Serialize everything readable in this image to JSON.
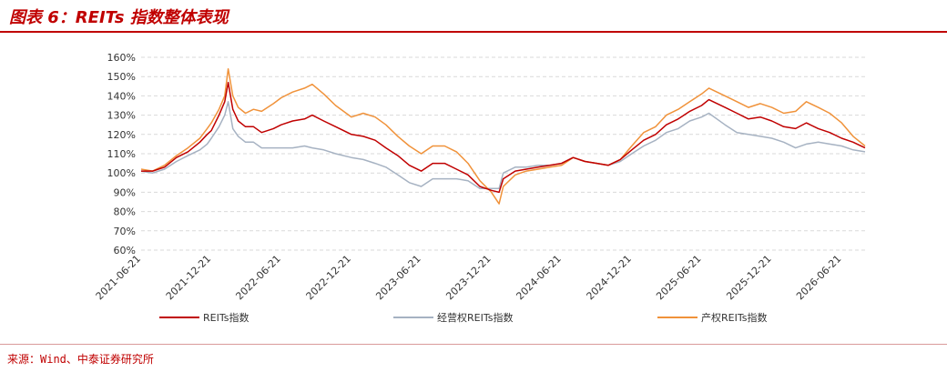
{
  "header": {
    "title": "图表 6：REITs 指数整体表现"
  },
  "footer": {
    "source": "来源：Wind、中泰证券研究所"
  },
  "colors": {
    "reits": "#c00000",
    "operating": "#a6b2c2",
    "property": "#f0923a",
    "grid": "#d9d9d9",
    "accent": "#c00000"
  },
  "chart_data": {
    "type": "line",
    "title": "",
    "xlabel": "",
    "ylabel": "",
    "ylim": [
      60,
      160
    ],
    "y_ticks": [
      60,
      70,
      80,
      90,
      100,
      110,
      120,
      130,
      140,
      150,
      160
    ],
    "y_tick_labels": [
      "60%",
      "70%",
      "80%",
      "90%",
      "100%",
      "110%",
      "120%",
      "130%",
      "140%",
      "150%",
      "160%"
    ],
    "x_range": [
      "2021-06-21",
      "2026-08-21"
    ],
    "x_ticks": [
      "2021-06-21",
      "2021-12-21",
      "2022-06-21",
      "2022-12-21",
      "2023-06-21",
      "2023-12-21",
      "2024-06-21",
      "2024-12-21",
      "2025-06-21",
      "2025-12-21",
      "2026-06-21"
    ],
    "grid": true,
    "legend_position": "bottom",
    "series": [
      {
        "name": "REITs指数",
        "color": "#c00000",
        "points": [
          [
            "2021-06-21",
            101
          ],
          [
            "2021-07-21",
            101
          ],
          [
            "2021-08-21",
            103
          ],
          [
            "2021-09-21",
            108
          ],
          [
            "2021-10-21",
            111
          ],
          [
            "2021-11-21",
            116
          ],
          [
            "2021-12-10",
            120
          ],
          [
            "2021-12-21",
            122
          ],
          [
            "2022-01-10",
            130
          ],
          [
            "2022-01-25",
            137
          ],
          [
            "2022-02-03",
            147
          ],
          [
            "2022-02-15",
            133
          ],
          [
            "2022-03-01",
            127
          ],
          [
            "2022-03-20",
            124
          ],
          [
            "2022-04-10",
            124
          ],
          [
            "2022-05-01",
            121
          ],
          [
            "2022-06-01",
            123
          ],
          [
            "2022-06-21",
            125
          ],
          [
            "2022-07-21",
            127
          ],
          [
            "2022-08-21",
            128
          ],
          [
            "2022-09-10",
            130
          ],
          [
            "2022-10-10",
            127
          ],
          [
            "2022-11-10",
            124
          ],
          [
            "2022-12-21",
            120
          ],
          [
            "2023-01-21",
            119
          ],
          [
            "2023-02-21",
            117
          ],
          [
            "2023-03-21",
            113
          ],
          [
            "2023-04-21",
            109
          ],
          [
            "2023-05-21",
            104
          ],
          [
            "2023-06-21",
            101
          ],
          [
            "2023-07-21",
            105
          ],
          [
            "2023-08-21",
            105
          ],
          [
            "2023-09-21",
            102
          ],
          [
            "2023-10-21",
            99
          ],
          [
            "2023-11-21",
            93
          ],
          [
            "2023-12-21",
            91
          ],
          [
            "2024-01-10",
            90
          ],
          [
            "2024-01-21",
            97
          ],
          [
            "2024-02-21",
            101
          ],
          [
            "2024-03-21",
            102
          ],
          [
            "2024-04-21",
            103
          ],
          [
            "2024-05-21",
            104
          ],
          [
            "2024-06-21",
            105
          ],
          [
            "2024-07-21",
            108
          ],
          [
            "2024-08-21",
            106
          ],
          [
            "2024-09-21",
            105
          ],
          [
            "2024-10-21",
            104
          ],
          [
            "2024-11-21",
            107
          ],
          [
            "2024-12-21",
            112
          ],
          [
            "2025-01-21",
            117
          ],
          [
            "2025-02-21",
            120
          ],
          [
            "2025-03-21",
            125
          ],
          [
            "2025-04-21",
            128
          ],
          [
            "2025-05-21",
            132
          ],
          [
            "2025-06-21",
            135
          ],
          [
            "2025-07-10",
            138
          ],
          [
            "2025-08-21",
            134
          ],
          [
            "2025-09-21",
            131
          ],
          [
            "2025-10-21",
            128
          ],
          [
            "2025-11-21",
            129
          ],
          [
            "2025-12-21",
            127
          ],
          [
            "2026-01-21",
            124
          ],
          [
            "2026-02-21",
            123
          ],
          [
            "2026-03-21",
            126
          ],
          [
            "2026-04-21",
            123
          ],
          [
            "2026-05-21",
            121
          ],
          [
            "2026-06-21",
            118
          ],
          [
            "2026-07-21",
            116
          ],
          [
            "2026-08-21",
            113
          ]
        ]
      },
      {
        "name": "经营权REITs指数",
        "color": "#a6b2c2",
        "points": [
          [
            "2021-06-21",
            101
          ],
          [
            "2021-07-21",
            100
          ],
          [
            "2021-08-21",
            102
          ],
          [
            "2021-09-21",
            106
          ],
          [
            "2021-10-21",
            109
          ],
          [
            "2021-11-21",
            112
          ],
          [
            "2021-12-10",
            115
          ],
          [
            "2021-12-21",
            118
          ],
          [
            "2022-01-10",
            124
          ],
          [
            "2022-01-25",
            130
          ],
          [
            "2022-02-03",
            137
          ],
          [
            "2022-02-15",
            123
          ],
          [
            "2022-03-01",
            119
          ],
          [
            "2022-03-20",
            116
          ],
          [
            "2022-04-10",
            116
          ],
          [
            "2022-05-01",
            113
          ],
          [
            "2022-06-01",
            113
          ],
          [
            "2022-06-21",
            113
          ],
          [
            "2022-07-21",
            113
          ],
          [
            "2022-08-21",
            114
          ],
          [
            "2022-09-10",
            113
          ],
          [
            "2022-10-10",
            112
          ],
          [
            "2022-11-10",
            110
          ],
          [
            "2022-12-21",
            108
          ],
          [
            "2023-01-21",
            107
          ],
          [
            "2023-02-21",
            105
          ],
          [
            "2023-03-21",
            103
          ],
          [
            "2023-04-21",
            99
          ],
          [
            "2023-05-21",
            95
          ],
          [
            "2023-06-21",
            93
          ],
          [
            "2023-07-21",
            97
          ],
          [
            "2023-08-21",
            97
          ],
          [
            "2023-09-21",
            97
          ],
          [
            "2023-10-21",
            96
          ],
          [
            "2023-11-21",
            92
          ],
          [
            "2023-12-21",
            92
          ],
          [
            "2024-01-10",
            92
          ],
          [
            "2024-01-21",
            100
          ],
          [
            "2024-02-21",
            103
          ],
          [
            "2024-03-21",
            103
          ],
          [
            "2024-04-21",
            104
          ],
          [
            "2024-05-21",
            104
          ],
          [
            "2024-06-21",
            105
          ],
          [
            "2024-07-21",
            108
          ],
          [
            "2024-08-21",
            106
          ],
          [
            "2024-09-21",
            105
          ],
          [
            "2024-10-21",
            104
          ],
          [
            "2024-11-21",
            106
          ],
          [
            "2024-12-21",
            110
          ],
          [
            "2025-01-21",
            114
          ],
          [
            "2025-02-21",
            117
          ],
          [
            "2025-03-21",
            121
          ],
          [
            "2025-04-21",
            123
          ],
          [
            "2025-05-21",
            127
          ],
          [
            "2025-06-21",
            129
          ],
          [
            "2025-07-10",
            131
          ],
          [
            "2025-08-21",
            125
          ],
          [
            "2025-09-21",
            121
          ],
          [
            "2025-10-21",
            120
          ],
          [
            "2025-11-21",
            119
          ],
          [
            "2025-12-21",
            118
          ],
          [
            "2026-01-21",
            116
          ],
          [
            "2026-02-21",
            113
          ],
          [
            "2026-03-21",
            115
          ],
          [
            "2026-04-21",
            116
          ],
          [
            "2026-05-21",
            115
          ],
          [
            "2026-06-21",
            114
          ],
          [
            "2026-07-21",
            112
          ],
          [
            "2026-08-21",
            111
          ]
        ]
      },
      {
        "name": "产权REITs指数",
        "color": "#f0923a",
        "points": [
          [
            "2021-06-21",
            102
          ],
          [
            "2021-07-21",
            101
          ],
          [
            "2021-08-21",
            104
          ],
          [
            "2021-09-21",
            109
          ],
          [
            "2021-10-21",
            113
          ],
          [
            "2021-11-21",
            118
          ],
          [
            "2021-12-10",
            123
          ],
          [
            "2021-12-21",
            126
          ],
          [
            "2022-01-10",
            133
          ],
          [
            "2022-01-25",
            140
          ],
          [
            "2022-02-03",
            154
          ],
          [
            "2022-02-15",
            140
          ],
          [
            "2022-03-01",
            134
          ],
          [
            "2022-03-20",
            131
          ],
          [
            "2022-04-10",
            133
          ],
          [
            "2022-05-01",
            132
          ],
          [
            "2022-06-01",
            136
          ],
          [
            "2022-06-21",
            139
          ],
          [
            "2022-07-21",
            142
          ],
          [
            "2022-08-21",
            144
          ],
          [
            "2022-09-10",
            146
          ],
          [
            "2022-10-10",
            141
          ],
          [
            "2022-11-10",
            135
          ],
          [
            "2022-12-21",
            129
          ],
          [
            "2023-01-21",
            131
          ],
          [
            "2023-02-21",
            129
          ],
          [
            "2023-03-21",
            125
          ],
          [
            "2023-04-21",
            119
          ],
          [
            "2023-05-21",
            114
          ],
          [
            "2023-06-21",
            110
          ],
          [
            "2023-07-21",
            114
          ],
          [
            "2023-08-21",
            114
          ],
          [
            "2023-09-21",
            111
          ],
          [
            "2023-10-21",
            105
          ],
          [
            "2023-11-21",
            96
          ],
          [
            "2023-12-21",
            90
          ],
          [
            "2024-01-10",
            84
          ],
          [
            "2024-01-21",
            93
          ],
          [
            "2024-02-21",
            99
          ],
          [
            "2024-03-21",
            101
          ],
          [
            "2024-04-21",
            102
          ],
          [
            "2024-05-21",
            103
          ],
          [
            "2024-06-21",
            104
          ],
          [
            "2024-07-21",
            108
          ],
          [
            "2024-08-21",
            106
          ],
          [
            "2024-09-21",
            105
          ],
          [
            "2024-10-21",
            104
          ],
          [
            "2024-11-21",
            107
          ],
          [
            "2024-12-21",
            114
          ],
          [
            "2025-01-21",
            121
          ],
          [
            "2025-02-21",
            124
          ],
          [
            "2025-03-21",
            130
          ],
          [
            "2025-04-21",
            133
          ],
          [
            "2025-05-21",
            137
          ],
          [
            "2025-06-21",
            141
          ],
          [
            "2025-07-10",
            144
          ],
          [
            "2025-08-21",
            140
          ],
          [
            "2025-09-21",
            137
          ],
          [
            "2025-10-21",
            134
          ],
          [
            "2025-11-21",
            136
          ],
          [
            "2025-12-21",
            134
          ],
          [
            "2026-01-21",
            131
          ],
          [
            "2026-02-21",
            132
          ],
          [
            "2026-03-21",
            137
          ],
          [
            "2026-04-21",
            134
          ],
          [
            "2026-05-21",
            131
          ],
          [
            "2026-06-21",
            126
          ],
          [
            "2026-07-21",
            119
          ],
          [
            "2026-08-21",
            114
          ]
        ]
      }
    ]
  }
}
